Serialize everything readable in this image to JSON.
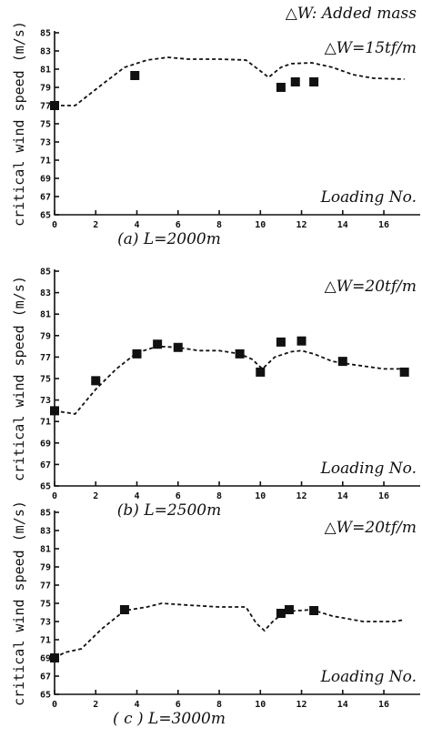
{
  "header_note": "△W: Added mass",
  "chart_data": [
    {
      "type": "scatter",
      "caption": "(a) L=2000m",
      "annotation": "△W=15tf/m",
      "xlabel": "Loading No.",
      "ylabel": "critical wind speed (m/s)",
      "xlim": [
        0,
        17.5
      ],
      "ylim": [
        65,
        85
      ],
      "xticks": [
        0,
        2,
        4,
        6,
        8,
        10,
        12,
        14,
        16
      ],
      "yticks": [
        65,
        67,
        69,
        71,
        73,
        75,
        77,
        79,
        81,
        83,
        85
      ],
      "series": [
        {
          "values": [
            [
              0,
              77.0
            ],
            [
              3.9,
              80.3
            ],
            [
              11.0,
              79.0
            ],
            [
              11.7,
              79.6
            ],
            [
              12.6,
              79.6
            ]
          ]
        }
      ],
      "trend": [
        [
          0,
          77.0
        ],
        [
          1.0,
          77.0
        ],
        [
          2.3,
          79.3
        ],
        [
          3.4,
          81.2
        ],
        [
          4.5,
          82.0
        ],
        [
          5.5,
          82.3
        ],
        [
          6.5,
          82.1
        ],
        [
          8.0,
          82.1
        ],
        [
          9.3,
          82.0
        ],
        [
          10.0,
          80.8
        ],
        [
          10.4,
          80.1
        ],
        [
          11.0,
          81.2
        ],
        [
          11.5,
          81.6
        ],
        [
          12.5,
          81.7
        ],
        [
          13.5,
          81.2
        ],
        [
          14.5,
          80.4
        ],
        [
          15.5,
          80.0
        ],
        [
          17.0,
          79.9
        ]
      ]
    },
    {
      "type": "scatter",
      "caption": "(b) L=2500m",
      "annotation": "△W=20tf/m",
      "xlabel": "Loading No.",
      "ylabel": "critical wind speed (m/s)",
      "xlim": [
        0,
        17.5
      ],
      "ylim": [
        65,
        85
      ],
      "xticks": [
        0,
        2,
        4,
        6,
        8,
        10,
        12,
        14,
        16
      ],
      "yticks": [
        65,
        67,
        69,
        71,
        73,
        75,
        77,
        79,
        81,
        83,
        85
      ],
      "series": [
        {
          "values": [
            [
              0,
              72.0
            ],
            [
              2.0,
              74.8
            ],
            [
              4.0,
              77.3
            ],
            [
              5.0,
              78.2
            ],
            [
              6.0,
              77.9
            ],
            [
              9.0,
              77.3
            ],
            [
              10.0,
              75.6
            ],
            [
              11.0,
              78.4
            ],
            [
              12.0,
              78.5
            ],
            [
              14.0,
              76.6
            ],
            [
              17.0,
              75.6
            ]
          ]
        }
      ],
      "trend": [
        [
          0,
          72.0
        ],
        [
          1.0,
          71.7
        ],
        [
          2.0,
          74.0
        ],
        [
          3.0,
          75.9
        ],
        [
          4.0,
          77.4
        ],
        [
          5.0,
          78.0
        ],
        [
          6.0,
          77.9
        ],
        [
          7.0,
          77.6
        ],
        [
          8.0,
          77.6
        ],
        [
          9.0,
          77.3
        ],
        [
          9.6,
          76.8
        ],
        [
          10.1,
          75.9
        ],
        [
          10.7,
          77.0
        ],
        [
          11.5,
          77.5
        ],
        [
          12.0,
          77.6
        ],
        [
          12.6,
          77.3
        ],
        [
          13.5,
          76.6
        ],
        [
          14.5,
          76.3
        ],
        [
          16.0,
          75.9
        ],
        [
          17.0,
          75.9
        ]
      ]
    },
    {
      "type": "scatter",
      "caption": "( c ) L=3000m",
      "annotation": "△W=20tf/m",
      "xlabel": "Loading No.",
      "ylabel": "critical wind speed (m/s)",
      "xlim": [
        0,
        17.5
      ],
      "ylim": [
        65,
        85
      ],
      "xticks": [
        0,
        2,
        4,
        6,
        8,
        10,
        12,
        14,
        16
      ],
      "yticks": [
        65,
        67,
        69,
        71,
        73,
        75,
        77,
        79,
        81,
        83,
        85
      ],
      "series": [
        {
          "values": [
            [
              0,
              69.0
            ],
            [
              3.4,
              74.3
            ],
            [
              11.0,
              73.9
            ],
            [
              11.4,
              74.3
            ],
            [
              12.6,
              74.2
            ]
          ]
        }
      ],
      "trend": [
        [
          0,
          69.0
        ],
        [
          0.5,
          69.6
        ],
        [
          1.3,
          70.0
        ],
        [
          2.3,
          72.2
        ],
        [
          3.4,
          74.2
        ],
        [
          4.5,
          74.6
        ],
        [
          5.2,
          75.0
        ],
        [
          6.5,
          74.8
        ],
        [
          8.0,
          74.6
        ],
        [
          9.3,
          74.6
        ],
        [
          9.8,
          72.8
        ],
        [
          10.2,
          72.0
        ],
        [
          10.6,
          73.0
        ],
        [
          11.2,
          74.1
        ],
        [
          12.5,
          74.3
        ],
        [
          13.5,
          73.6
        ],
        [
          15.0,
          73.0
        ],
        [
          16.5,
          73.0
        ],
        [
          17.0,
          73.2
        ]
      ]
    }
  ]
}
